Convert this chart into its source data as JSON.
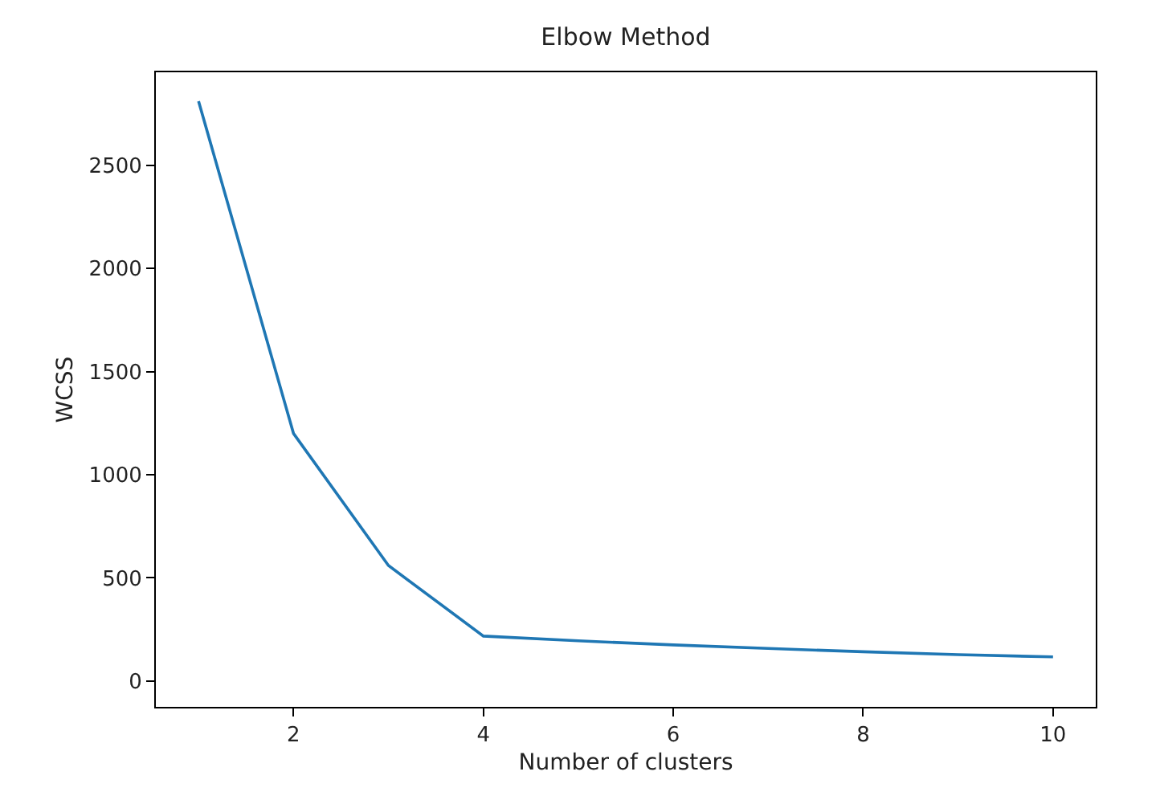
{
  "chart_data": {
    "type": "line",
    "title": "Elbow Method",
    "xlabel": "Number of clusters",
    "ylabel": "WCSS",
    "x": [
      1,
      2,
      3,
      4,
      5,
      6,
      7,
      8,
      9,
      10
    ],
    "series": [
      {
        "color": "#1f77b4",
        "values": [
          2810,
          1200,
          560,
          218,
          195,
          175,
          158,
          142,
          128,
          117
        ]
      }
    ],
    "xlim": [
      0.55,
      10.45
    ],
    "ylim": [
      -125,
      2950
    ],
    "xticks": [
      2,
      4,
      6,
      8,
      10
    ],
    "yticks": [
      0,
      500,
      1000,
      1500,
      2000,
      2500
    ],
    "marker": "none",
    "line_style": "solid"
  }
}
